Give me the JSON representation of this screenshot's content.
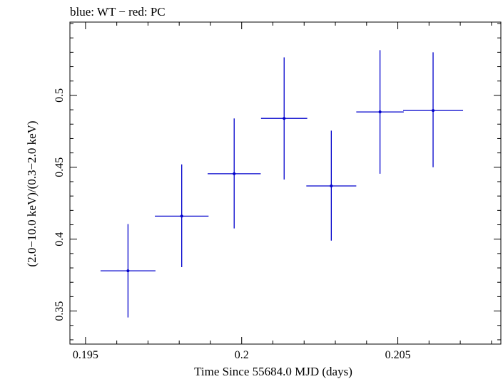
{
  "chart_data": {
    "type": "scatter",
    "title": "blue: WT − red: PC",
    "xlabel": "Time Since 55684.0 MJD (days)",
    "ylabel": "(2.0−10.0 keV)/(0.3−2.0 keV)",
    "xlim": [
      0.1945,
      0.2083
    ],
    "ylim": [
      0.327,
      0.551
    ],
    "x_ticks": [
      {
        "value": 0.195,
        "label": "0.195"
      },
      {
        "value": 0.2,
        "label": "0.2"
      },
      {
        "value": 0.205,
        "label": "0.205"
      }
    ],
    "y_ticks": [
      {
        "value": 0.35,
        "label": "0.35"
      },
      {
        "value": 0.4,
        "label": "0.4"
      },
      {
        "value": 0.45,
        "label": "0.45"
      },
      {
        "value": 0.5,
        "label": "0.5"
      }
    ],
    "series": [
      {
        "color": "#0000cc",
        "points": [
          {
            "x": 0.19636,
            "y": 0.378,
            "xerr": 0.00088,
            "yerr_low": 0.0325,
            "yerr_high": 0.0325
          },
          {
            "x": 0.19808,
            "y": 0.416,
            "xerr": 0.00086,
            "yerr_low": 0.0355,
            "yerr_high": 0.036
          },
          {
            "x": 0.19976,
            "y": 0.4455,
            "xerr": 0.00085,
            "yerr_low": 0.038,
            "yerr_high": 0.0385
          },
          {
            "x": 0.20136,
            "y": 0.484,
            "xerr": 0.00074,
            "yerr_low": 0.0425,
            "yerr_high": 0.0425
          },
          {
            "x": 0.20287,
            "y": 0.437,
            "xerr": 0.0008,
            "yerr_low": 0.038,
            "yerr_high": 0.0385
          },
          {
            "x": 0.20443,
            "y": 0.4885,
            "xerr": 0.00076,
            "yerr_low": 0.043,
            "yerr_high": 0.043
          },
          {
            "x": 0.20613,
            "y": 0.4895,
            "xerr": 0.00096,
            "yerr_low": 0.0395,
            "yerr_high": 0.0405
          }
        ]
      }
    ]
  }
}
